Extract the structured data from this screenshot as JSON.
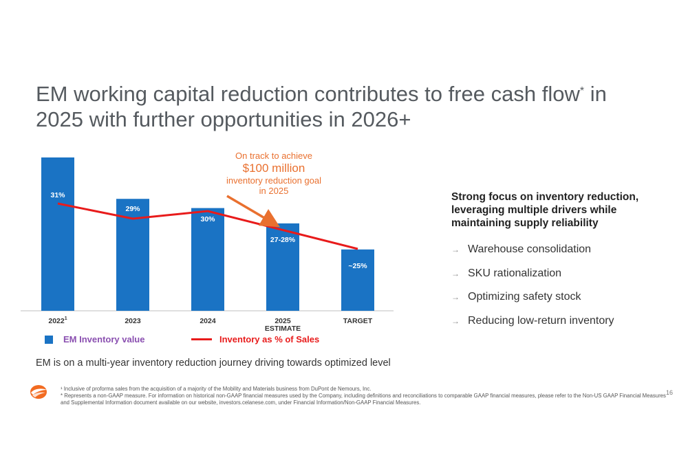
{
  "title": "EM working capital reduction contributes to free cash flow",
  "title_mark": "*",
  "title_line2": "in 2025 with further opportunities in 2026+",
  "callout": {
    "line1": "On track to achieve",
    "line2": "$100 million",
    "line3": "inventory reduction goal",
    "line4": "in 2025"
  },
  "chart_data": {
    "type": "bar",
    "categories": [
      "2022",
      "2023",
      "2024",
      "2025 ESTIMATE",
      "TARGET"
    ],
    "category_labels": [
      {
        "text": "2022",
        "sup": "1"
      },
      {
        "text": "2023"
      },
      {
        "text": "2024"
      },
      {
        "text": "2025",
        "line2": "ESTIMATE"
      },
      {
        "text": "TARGET"
      }
    ],
    "series": [
      {
        "name": "EM Inventory value",
        "type": "bar",
        "values": [
          100,
          73,
          67,
          57,
          40
        ],
        "color": "#1a73c4"
      },
      {
        "name": "Inventory as % of Sales",
        "type": "line",
        "values": [
          31,
          29,
          30,
          27.5,
          25
        ],
        "labels": [
          "31%",
          "29%",
          "30%",
          "27-28%",
          "~25%"
        ],
        "color": "#e81b1b"
      }
    ],
    "legend": [
      "EM Inventory value",
      "Inventory as % of Sales"
    ],
    "legend_placement": "bottom",
    "grid": false
  },
  "right_panel": {
    "heading": "Strong focus on inventory reduction, leveraging multiple drivers while maintaining supply reliability",
    "bullets": [
      "Warehouse consolidation",
      "SKU rationalization",
      "Optimizing safety stock",
      "Reducing low-return inventory"
    ]
  },
  "summary": "EM is on a multi-year inventory reduction journey driving towards optimized level",
  "footnotes": [
    "¹ Inclusive of proforma sales from the acquisition of a majority of the Mobility and Materials business from DuPont de Nemours, Inc.",
    "* Represents a non-GAAP measure. For information on historical non-GAAP financial measures used by the Company, including definitions and reconciliations to comparable GAAP financial measures, please refer to the Non-US GAAP Financial Measures and Supplemental Information document available on our website, investors.celanese.com, under Financial Information/Non-GAAP Financial Measures."
  ],
  "page_number": "16",
  "colors": {
    "bar": "#1a73c4",
    "line": "#e81b1b",
    "accent": "#e9702f",
    "title": "#555a5f"
  }
}
